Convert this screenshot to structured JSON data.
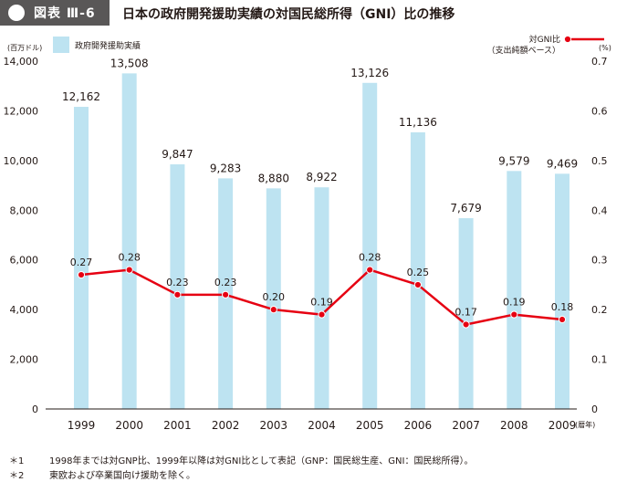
{
  "header": {
    "figure_label": "図表 Ⅲ-6",
    "title": "日本の政府開発援助実績の対国民総所得（GNI）比の推移"
  },
  "chart_data": {
    "type": "bar+line",
    "categories": [
      "1999",
      "2000",
      "2001",
      "2002",
      "2003",
      "2004",
      "2005",
      "2006",
      "2007",
      "2008",
      "2009"
    ],
    "series": [
      {
        "name": "政府開発援助実績",
        "type": "bar",
        "axis": "left",
        "color": "#bde3f1",
        "values": [
          12162,
          13508,
          9847,
          9283,
          8880,
          8922,
          13126,
          11136,
          7679,
          9579,
          9469
        ],
        "labels": [
          "12,162",
          "13,508",
          "9,847",
          "9,283",
          "8,880",
          "8,922",
          "13,126",
          "11,136",
          "7,679",
          "9,579",
          "9,469"
        ]
      },
      {
        "name": "対GNI比",
        "name_sub": "（支出純額ベース）",
        "type": "line",
        "axis": "right",
        "color": "#e60012",
        "values": [
          0.27,
          0.28,
          0.23,
          0.23,
          0.2,
          0.19,
          0.28,
          0.25,
          0.17,
          0.19,
          0.18
        ],
        "labels": [
          "0.27",
          "0.28",
          "0.23",
          "0.23",
          "0.20",
          "0.19",
          "0.28",
          "0.25",
          "0.17",
          "0.19",
          "0.18"
        ]
      }
    ],
    "y_left": {
      "unit": "(百万ドル)",
      "ylim": [
        0,
        14000
      ],
      "ticks": [
        0,
        2000,
        4000,
        6000,
        8000,
        10000,
        12000,
        14000
      ],
      "tick_labels": [
        "0",
        "2,000",
        "4,000",
        "6,000",
        "8,000",
        "10,000",
        "12,000",
        "14,000"
      ]
    },
    "y_right": {
      "unit": "(%)",
      "ylim": [
        0,
        0.7
      ],
      "ticks": [
        0,
        0.1,
        0.2,
        0.3,
        0.4,
        0.5,
        0.6,
        0.7
      ],
      "tick_labels": [
        "0",
        "0.1",
        "0.2",
        "0.3",
        "0.4",
        "0.5",
        "0.6",
        "0.7"
      ]
    },
    "x_unit": "(暦年)",
    "grid": false,
    "legend_placement": "top"
  },
  "footnotes": [
    {
      "mark": "＊1",
      "text": "1998年までは対GNP比、1999年以降は対GNI比として表記（GNP：国民総生産、GNI：国民総所得）。"
    },
    {
      "mark": "＊2",
      "text": "東欧および卒業国向け援助を除く。"
    }
  ]
}
